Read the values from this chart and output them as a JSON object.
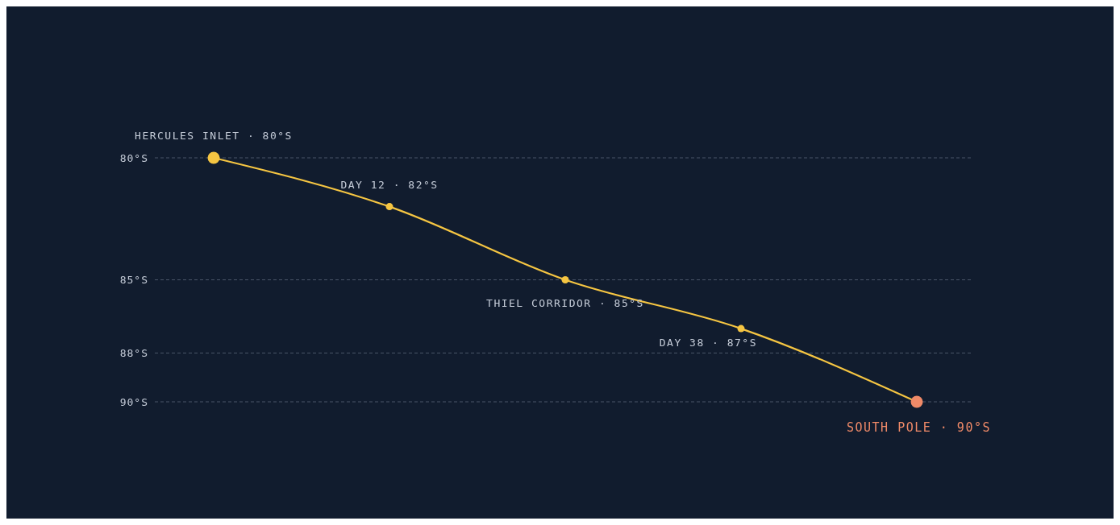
{
  "chart_data": {
    "type": "line",
    "categories": [
      null,
      null,
      null,
      null,
      null
    ],
    "series": [
      {
        "color": "#f5c542",
        "colors": [
          "#f5c542",
          "#f5c542",
          "#f5c542",
          "#f5c542",
          "#f08a68"
        ],
        "values": [
          80,
          82,
          85,
          87,
          90
        ]
      }
    ],
    "ylim": [
      90,
      80
    ],
    "yticks": [
      {
        "value": 80,
        "label": "80°S"
      },
      {
        "value": 85,
        "label": "85°S"
      },
      {
        "value": 88,
        "label": "88°S"
      },
      {
        "value": 90,
        "label": "90°S"
      }
    ],
    "grid": "y",
    "marker": "circle",
    "line_style": "solid",
    "tick_labels": "y",
    "annotations": [
      "HERCULES INLET · 80°S",
      "DAY 12 · 82°S",
      "THIEL CORRIDOR · 85°S",
      "DAY 38 · 87°S",
      "SOUTH POLE · 90°S"
    ]
  }
}
